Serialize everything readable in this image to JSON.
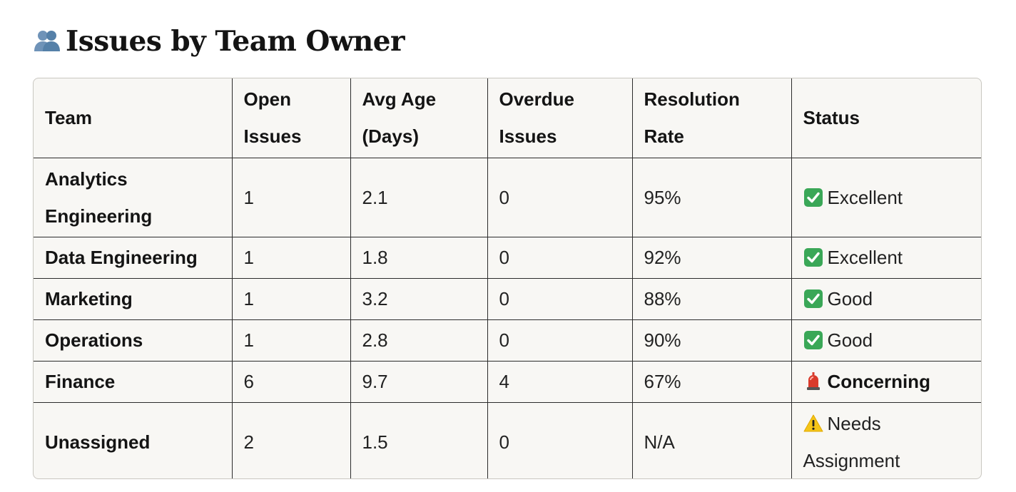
{
  "heading": {
    "icon": "people-icon",
    "title": "Issues by Team Owner"
  },
  "table": {
    "columns": [
      "Team",
      "Open Issues",
      "Avg Age (Days)",
      "Overdue Issues",
      "Resolution Rate",
      "Status"
    ],
    "column_lines": [
      [
        "Team"
      ],
      [
        "Open",
        "Issues"
      ],
      [
        "Avg Age",
        "(Days)"
      ],
      [
        "Overdue",
        "Issues"
      ],
      [
        "Resolution",
        "Rate"
      ],
      [
        "Status"
      ]
    ],
    "rows": [
      {
        "team_lines": [
          "Analytics",
          "Engineering"
        ],
        "open": "1",
        "avg_age": "2.1",
        "overdue": "0",
        "resolution": "95%",
        "status_icon": "check-mark-icon",
        "status_lines": [
          "Excellent"
        ]
      },
      {
        "team_lines": [
          "Data Engineering"
        ],
        "open": "1",
        "avg_age": "1.8",
        "overdue": "0",
        "resolution": "92%",
        "status_icon": "check-mark-icon",
        "status_lines": [
          "Excellent"
        ]
      },
      {
        "team_lines": [
          "Marketing"
        ],
        "open": "1",
        "avg_age": "3.2",
        "overdue": "0",
        "resolution": "88%",
        "status_icon": "check-mark-icon",
        "status_lines": [
          "Good"
        ]
      },
      {
        "team_lines": [
          "Operations"
        ],
        "open": "1",
        "avg_age": "2.8",
        "overdue": "0",
        "resolution": "90%",
        "status_icon": "check-mark-icon",
        "status_lines": [
          "Good"
        ]
      },
      {
        "team_lines": [
          "Finance"
        ],
        "open": "6",
        "avg_age": "9.7",
        "overdue": "4",
        "resolution": "67%",
        "status_icon": "siren-icon",
        "status_lines": [
          "Concerning"
        ]
      },
      {
        "team_lines": [
          "Unassigned"
        ],
        "open": "2",
        "avg_age": "1.5",
        "overdue": "0",
        "resolution": "N/A",
        "status_icon": "warning-icon",
        "status_lines": [
          "Needs",
          "Assignment"
        ]
      }
    ]
  },
  "colors": {
    "table_background": "#f8f7f4",
    "check_green": "#3aa757",
    "siren_red": "#d93a2b",
    "warning_yellow": "#f5c518"
  }
}
